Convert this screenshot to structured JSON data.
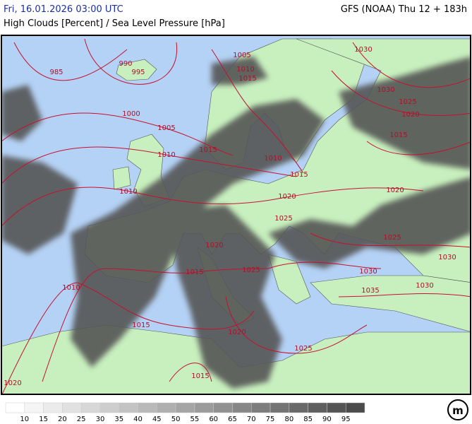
{
  "header": {
    "datetime": "Fri, 16.01.2026 03:00 UTC",
    "model": "GFS (NOAA) Thu 12 + 183h",
    "title": "High Clouds [Percent] / Sea Level Pressure [hPa]"
  },
  "isobar_labels": [
    985,
    990,
    995,
    1005,
    1030,
    1010,
    1015,
    1030,
    1025,
    1020,
    1000,
    1005,
    1015,
    1015,
    1010,
    1010,
    1015,
    1010,
    1020,
    1020,
    1025,
    1025,
    1020,
    1030,
    1025,
    1015,
    1030,
    1010,
    1030,
    1035,
    1015,
    1020,
    1025,
    1015,
    1020
  ],
  "colorbar": {
    "labels": [
      10,
      15,
      20,
      25,
      30,
      35,
      40,
      45,
      50,
      55,
      60,
      65,
      70,
      75,
      80,
      85,
      90,
      95
    ],
    "colors": [
      "#ffffff",
      "#f5f5f5",
      "#ebebeb",
      "#e1e1e1",
      "#d7d7d7",
      "#cdcdcd",
      "#c3c3c3",
      "#b9b9b9",
      "#afafaf",
      "#a5a5a5",
      "#9b9b9b",
      "#919191",
      "#878787",
      "#7d7d7d",
      "#737373",
      "#696969",
      "#5f5f5f",
      "#555555",
      "#4b4b4b"
    ]
  }
}
